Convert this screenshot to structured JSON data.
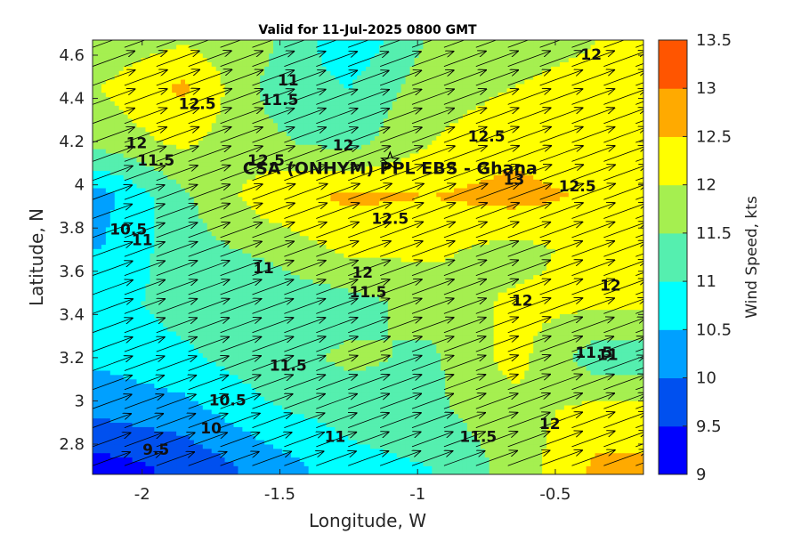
{
  "chart_data": {
    "type": "heatmap",
    "title": "Valid for 11-Jul-2025 0800 GMT",
    "xlabel": "Longitude, W",
    "ylabel": "Latitude, N",
    "colorbar_label": "Wind Speed, kts",
    "xlim": [
      -2.18,
      -0.18
    ],
    "ylim": [
      2.66,
      4.67
    ],
    "xticks": [
      -2,
      -1.5,
      -1,
      -0.5
    ],
    "xtick_labels": [
      "-2",
      "-1.5",
      "-1",
      "-0.5"
    ],
    "yticks": [
      2.8,
      3.0,
      3.2,
      3.4,
      3.6,
      3.8,
      4.0,
      4.2,
      4.4,
      4.6
    ],
    "ytick_labels": [
      "2.8",
      "3",
      "3.2",
      "3.4",
      "3.6",
      "3.8",
      "4",
      "4.2",
      "4.4",
      "4.6"
    ],
    "levels": [
      9,
      9.5,
      10,
      10.5,
      11,
      11.5,
      12,
      12.5,
      13,
      13.5
    ],
    "level_labels": [
      "9",
      "9.5",
      "10",
      "10.5",
      "11",
      "11.5",
      "12",
      "12.5",
      "13",
      "13.5"
    ],
    "colors": [
      "#0000ff",
      "#0050ef",
      "#00a0ff",
      "#00ffff",
      "#55efaf",
      "#a5ef50",
      "#ffff00",
      "#ffaa00",
      "#ff5500"
    ],
    "grid": false,
    "legend": "colorbar-right",
    "x": [
      -2.15,
      -1.85,
      -1.55,
      -1.25,
      -0.95,
      -0.65,
      -0.35
    ],
    "y": [
      2.7,
      2.95,
      3.2,
      3.45,
      3.7,
      3.95,
      4.2,
      4.45,
      4.65
    ],
    "z": [
      [
        9.3,
        9.6,
        10.2,
        10.8,
        11.0,
        11.7,
        12.6
      ],
      [
        10.1,
        10.3,
        10.9,
        11.2,
        11.4,
        11.8,
        12.2
      ],
      [
        10.6,
        10.9,
        11.3,
        11.6,
        11.4,
        12.2,
        11.2
      ],
      [
        10.8,
        11.2,
        11.1,
        11.3,
        11.7,
        12.1,
        12.1
      ],
      [
        10.5,
        11.3,
        11.6,
        12.1,
        12.1,
        11.8,
        12.2
      ],
      [
        10.3,
        11.4,
        12.3,
        12.6,
        12.5,
        12.7,
        12.4
      ],
      [
        11.7,
        12.1,
        11.6,
        11.3,
        12.0,
        12.3,
        12.1
      ],
      [
        12.0,
        12.6,
        11.4,
        11.0,
        11.8,
        12.0,
        12.1
      ],
      [
        11.7,
        12.0,
        11.6,
        10.6,
        11.6,
        11.9,
        12.0
      ]
    ],
    "wind_direction_deg": 70,
    "annotations": [
      {
        "text": "CSA (ONHYM) PPL EBS  - Ghana",
        "lon": -1.1,
        "lat": 4.05
      },
      {
        "text": "12.5",
        "lon": -1.8,
        "lat": 4.35
      },
      {
        "text": "11",
        "lon": -1.47,
        "lat": 4.46
      },
      {
        "text": "11.5",
        "lon": -1.5,
        "lat": 4.37
      },
      {
        "text": "12",
        "lon": -2.02,
        "lat": 4.17
      },
      {
        "text": "11.5",
        "lon": -1.95,
        "lat": 4.09
      },
      {
        "text": "12",
        "lon": -1.27,
        "lat": 4.16
      },
      {
        "text": "12.5",
        "lon": -1.55,
        "lat": 4.09
      },
      {
        "text": "12.5",
        "lon": -0.75,
        "lat": 4.2
      },
      {
        "text": "13",
        "lon": -0.65,
        "lat": 4.0
      },
      {
        "text": "12.5",
        "lon": -0.42,
        "lat": 3.97
      },
      {
        "text": "12.5",
        "lon": -1.1,
        "lat": 3.82
      },
      {
        "text": "12",
        "lon": -0.37,
        "lat": 4.58
      },
      {
        "text": "10.5",
        "lon": -2.05,
        "lat": 3.77
      },
      {
        "text": "11",
        "lon": -2.0,
        "lat": 3.72
      },
      {
        "text": "11",
        "lon": -1.56,
        "lat": 3.59
      },
      {
        "text": "12",
        "lon": -1.2,
        "lat": 3.57
      },
      {
        "text": "11.5",
        "lon": -1.18,
        "lat": 3.48
      },
      {
        "text": "12",
        "lon": -0.62,
        "lat": 3.44
      },
      {
        "text": "12",
        "lon": -0.3,
        "lat": 3.51
      },
      {
        "text": "11.5",
        "lon": -1.47,
        "lat": 3.14
      },
      {
        "text": "11.5",
        "lon": -0.36,
        "lat": 3.2
      },
      {
        "text": "11",
        "lon": -0.31,
        "lat": 3.19
      },
      {
        "text": "10.5",
        "lon": -1.69,
        "lat": 2.98
      },
      {
        "text": "10",
        "lon": -1.75,
        "lat": 2.85
      },
      {
        "text": "9.5",
        "lon": -1.95,
        "lat": 2.75
      },
      {
        "text": "11",
        "lon": -1.3,
        "lat": 2.81
      },
      {
        "text": "11.5",
        "lon": -0.78,
        "lat": 2.81
      },
      {
        "text": "12",
        "lon": -0.52,
        "lat": 2.87
      }
    ]
  }
}
